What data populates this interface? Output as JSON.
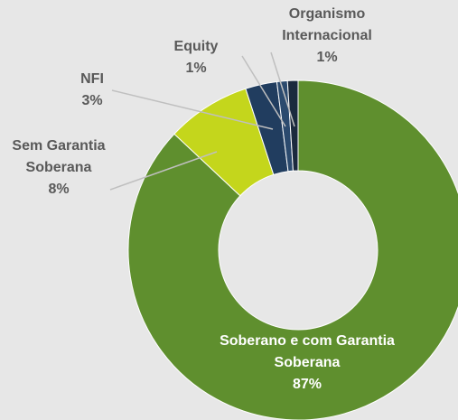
{
  "chart_data": {
    "type": "donut",
    "categories": [
      "Soberano e com Garantia Soberana",
      "Sem Garantia Soberana",
      "NFI",
      "Equity",
      "Organismo Internacional"
    ],
    "values": [
      87,
      8,
      3,
      1,
      1
    ],
    "value_labels": [
      "87%",
      "8%",
      "3%",
      "1%",
      "1%"
    ],
    "colors": [
      "#5f8f2e",
      "#c4d61c",
      "#213d5f",
      "#2b4a6e",
      "#1b2a3e"
    ]
  }
}
